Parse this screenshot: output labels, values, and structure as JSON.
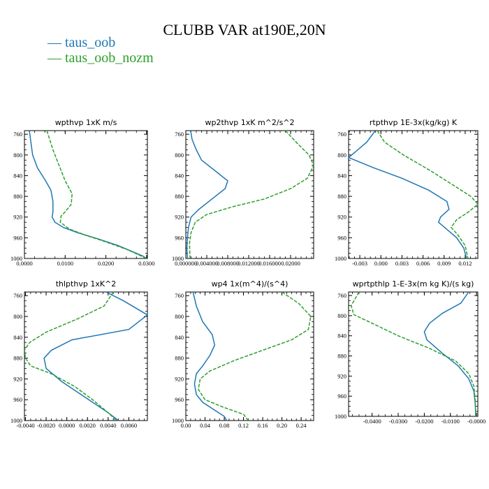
{
  "title": "CLUBB VAR at190E,20N",
  "legend": [
    {
      "label": "— taus_oob",
      "color": "#1f77b4"
    },
    {
      "label": "— taus_oob_nozm",
      "color": "#2ca02c"
    }
  ],
  "chart_data": [
    {
      "type": "line",
      "title": "wpthvp  1xK m/s",
      "xlim": [
        0,
        0.0302
      ],
      "ylim": [
        1000,
        753
      ],
      "xticks": [
        "0.0000",
        "0.0100",
        "0.0200",
        "0.0300"
      ],
      "xtick_values": [
        0,
        0.01,
        0.02,
        0.03
      ],
      "yticks": [
        760,
        800,
        840,
        880,
        920,
        960,
        1000
      ],
      "series": [
        {
          "name": "taus_oob",
          "color": "#1f77b4",
          "dashed": false,
          "points": [
            [
              0.0012,
              753
            ],
            [
              0.002,
              800
            ],
            [
              0.0032,
              825
            ],
            [
              0.0052,
              850
            ],
            [
              0.0065,
              868
            ],
            [
              0.007,
              890
            ],
            [
              0.007,
              910
            ],
            [
              0.0068,
              920
            ],
            [
              0.0075,
              930
            ],
            [
              0.0095,
              940
            ],
            [
              0.013,
              950
            ],
            [
              0.018,
              962
            ],
            [
              0.023,
              975
            ],
            [
              0.029,
              995
            ],
            [
              0.03,
              1000
            ]
          ]
        },
        {
          "name": "taus_oob_nozm",
          "color": "#2ca02c",
          "dashed": true,
          "points": [
            [
              0.0055,
              753
            ],
            [
              0.007,
              790
            ],
            [
              0.0085,
              820
            ],
            [
              0.01,
              850
            ],
            [
              0.0117,
              875
            ],
            [
              0.0115,
              895
            ],
            [
              0.01,
              910
            ],
            [
              0.009,
              918
            ],
            [
              0.0088,
              930
            ],
            [
              0.011,
              943
            ],
            [
              0.015,
              955
            ],
            [
              0.02,
              968
            ],
            [
              0.025,
              982
            ],
            [
              0.03,
              1000
            ]
          ]
        }
      ]
    },
    {
      "type": "line",
      "title": "wp2thvp  1xK m^2/s^2",
      "xlim": [
        0,
        0.0244
      ],
      "ylim": [
        1000,
        753
      ],
      "xticks": [
        "0.000000",
        "0.004000",
        "0.008000",
        "0.012000",
        "0.016000",
        "0.02000"
      ],
      "xtick_values": [
        0,
        0.004,
        0.008,
        0.012,
        0.016,
        0.02
      ],
      "yticks": [
        760,
        800,
        840,
        880,
        920,
        960,
        1000
      ],
      "series": [
        {
          "name": "taus_oob",
          "color": "#1f77b4",
          "dashed": false,
          "points": [
            [
              0.0009,
              753
            ],
            [
              0.0012,
              770
            ],
            [
              0.002,
              790
            ],
            [
              0.003,
              810
            ],
            [
              0.0055,
              830
            ],
            [
              0.008,
              850
            ],
            [
              0.0075,
              865
            ],
            [
              0.005,
              885
            ],
            [
              0.0025,
              905
            ],
            [
              0.001,
              920
            ],
            [
              0.0005,
              940
            ],
            [
              0.0003,
              960
            ],
            [
              0.0002,
              980
            ],
            [
              0.0003,
              1000
            ]
          ]
        },
        {
          "name": "taus_oob_nozm",
          "color": "#2ca02c",
          "dashed": true,
          "points": [
            [
              0.019,
              753
            ],
            [
              0.0215,
              780
            ],
            [
              0.0235,
              800
            ],
            [
              0.0244,
              820
            ],
            [
              0.0232,
              845
            ],
            [
              0.02,
              865
            ],
            [
              0.015,
              885
            ],
            [
              0.009,
              900
            ],
            [
              0.004,
              915
            ],
            [
              0.0018,
              930
            ],
            [
              0.001,
              950
            ],
            [
              0.0007,
              970
            ],
            [
              0.0008,
              1000
            ]
          ]
        }
      ]
    },
    {
      "type": "line",
      "title": "rtpthvp  1E-3x(kg/kg) K",
      "xlim": [
        -0.0046,
        0.0138
      ],
      "ylim": [
        1000,
        753
      ],
      "xticks": [
        "-0.003",
        "0.000",
        "0.003",
        "0.006",
        "0.009",
        "0.012"
      ],
      "xtick_values": [
        -0.003,
        0,
        0.003,
        0.006,
        0.009,
        0.012
      ],
      "yticks": [
        760,
        800,
        840,
        880,
        920,
        960,
        1000
      ],
      "series": [
        {
          "name": "taus_oob",
          "color": "#1f77b4",
          "dashed": false,
          "points": [
            [
              -0.0008,
              753
            ],
            [
              -0.002,
              775
            ],
            [
              -0.0037,
              795
            ],
            [
              -0.0046,
              805
            ],
            [
              -0.001,
              825
            ],
            [
              0.003,
              845
            ],
            [
              0.0068,
              868
            ],
            [
              0.0094,
              890
            ],
            [
              0.0097,
              905
            ],
            [
              0.0085,
              920
            ],
            [
              0.0082,
              930
            ],
            [
              0.0095,
              945
            ],
            [
              0.0108,
              960
            ],
            [
              0.0118,
              980
            ],
            [
              0.0122,
              1000
            ]
          ]
        },
        {
          "name": "taus_oob_nozm",
          "color": "#2ca02c",
          "dashed": true,
          "points": [
            [
              -0.0005,
              753
            ],
            [
              0.0005,
              775
            ],
            [
              0.0032,
              800
            ],
            [
              0.007,
              830
            ],
            [
              0.0105,
              860
            ],
            [
              0.0128,
              880
            ],
            [
              0.0138,
              895
            ],
            [
              0.0125,
              910
            ],
            [
              0.0108,
              925
            ],
            [
              0.01,
              940
            ],
            [
              0.011,
              955
            ],
            [
              0.012,
              975
            ],
            [
              0.0124,
              1000
            ]
          ]
        }
      ]
    },
    {
      "type": "line",
      "title": "thlpthvp  1xK^2",
      "xlim": [
        -0.0041,
        0.0078
      ],
      "ylim": [
        1000,
        753
      ],
      "xticks": [
        "-0.0040",
        "-0.0020",
        "0.0000",
        "0.0020",
        "0.0040",
        "0.0060"
      ],
      "xtick_values": [
        -0.004,
        -0.002,
        0,
        0.002,
        0.004,
        0.006
      ],
      "yticks": [
        760,
        800,
        840,
        880,
        920,
        960,
        1000
      ],
      "series": [
        {
          "name": "taus_oob",
          "color": "#1f77b4",
          "dashed": false,
          "points": [
            [
              0.0038,
              753
            ],
            [
              0.0055,
              770
            ],
            [
              0.0078,
              797
            ],
            [
              0.006,
              825
            ],
            [
              0.0005,
              845
            ],
            [
              -0.0015,
              865
            ],
            [
              -0.0022,
              880
            ],
            [
              -0.002,
              900
            ],
            [
              -0.0005,
              925
            ],
            [
              0.001,
              945
            ],
            [
              0.0025,
              965
            ],
            [
              0.004,
              985
            ],
            [
              0.005,
              1000
            ]
          ]
        },
        {
          "name": "taus_oob_nozm",
          "color": "#2ca02c",
          "dashed": true,
          "points": [
            [
              0.0045,
              753
            ],
            [
              0.0036,
              780
            ],
            [
              0.001,
              805
            ],
            [
              -0.002,
              830
            ],
            [
              -0.0036,
              850
            ],
            [
              -0.0041,
              865
            ],
            [
              -0.004,
              880
            ],
            [
              -0.0035,
              895
            ],
            [
              -0.0015,
              910
            ],
            [
              0.0008,
              935
            ],
            [
              0.0025,
              960
            ],
            [
              0.004,
              985
            ],
            [
              0.0048,
              1000
            ]
          ]
        }
      ]
    },
    {
      "type": "line",
      "title": "wp4  1x(m^4)/(s^4)",
      "xlim": [
        0,
        0.266
      ],
      "ylim": [
        1000,
        753
      ],
      "xticks": [
        "0.00",
        "0.04",
        "0.08",
        "0.12",
        "0.16",
        "0.20",
        "0.24"
      ],
      "xtick_values": [
        0,
        0.04,
        0.08,
        0.12,
        0.16,
        0.2,
        0.24
      ],
      "yticks": [
        760,
        800,
        840,
        880,
        920,
        960,
        1000
      ],
      "series": [
        {
          "name": "taus_oob",
          "color": "#1f77b4",
          "dashed": false,
          "points": [
            [
              0.015,
              753
            ],
            [
              0.022,
              780
            ],
            [
              0.035,
              810
            ],
            [
              0.055,
              835
            ],
            [
              0.06,
              855
            ],
            [
              0.05,
              875
            ],
            [
              0.035,
              895
            ],
            [
              0.022,
              910
            ],
            [
              0.018,
              930
            ],
            [
              0.022,
              950
            ],
            [
              0.035,
              965
            ],
            [
              0.06,
              980
            ],
            [
              0.08,
              992
            ],
            [
              0.085,
              1000
            ]
          ]
        },
        {
          "name": "taus_oob_nozm",
          "color": "#2ca02c",
          "dashed": true,
          "points": [
            [
              0.2,
              753
            ],
            [
              0.235,
              775
            ],
            [
              0.26,
              800
            ],
            [
              0.255,
              825
            ],
            [
              0.22,
              845
            ],
            [
              0.16,
              865
            ],
            [
              0.1,
              885
            ],
            [
              0.05,
              905
            ],
            [
              0.03,
              920
            ],
            [
              0.026,
              940
            ],
            [
              0.04,
              960
            ],
            [
              0.08,
              975
            ],
            [
              0.12,
              988
            ],
            [
              0.13,
              1000
            ]
          ]
        }
      ]
    },
    {
      "type": "line",
      "title": "wprtpthlp  1-E-3x(m kg K)/(s kg)",
      "xlim": [
        -0.049,
        0.0005
      ],
      "ylim": [
        1000,
        753
      ],
      "xticks": [
        "-0.0400",
        "-0.0300",
        "-0.0200",
        "-0.0100",
        "-0.0000"
      ],
      "xtick_values": [
        -0.04,
        -0.03,
        -0.02,
        -0.01,
        0
      ],
      "yticks": [
        760,
        800,
        840,
        880,
        920,
        960,
        1000
      ],
      "series": [
        {
          "name": "taus_oob",
          "color": "#1f77b4",
          "dashed": false,
          "points": [
            [
              -0.003,
              753
            ],
            [
              -0.006,
              775
            ],
            [
              -0.013,
              795
            ],
            [
              -0.018,
              815
            ],
            [
              -0.02,
              832
            ],
            [
              -0.019,
              848
            ],
            [
              -0.013,
              875
            ],
            [
              -0.007,
              900
            ],
            [
              -0.003,
              925
            ],
            [
              -0.001,
              950
            ],
            [
              -0.0005,
              975
            ],
            [
              -0.0003,
              1000
            ]
          ]
        },
        {
          "name": "taus_oob_nozm",
          "color": "#2ca02c",
          "dashed": true,
          "points": [
            [
              -0.045,
              753
            ],
            [
              -0.048,
              780
            ],
            [
              -0.047,
              798
            ],
            [
              -0.04,
              815
            ],
            [
              -0.03,
              840
            ],
            [
              -0.018,
              865
            ],
            [
              -0.008,
              890
            ],
            [
              -0.003,
              915
            ],
            [
              -0.001,
              940
            ],
            [
              -0.0005,
              970
            ],
            [
              -0.0003,
              1000
            ]
          ]
        }
      ]
    }
  ]
}
